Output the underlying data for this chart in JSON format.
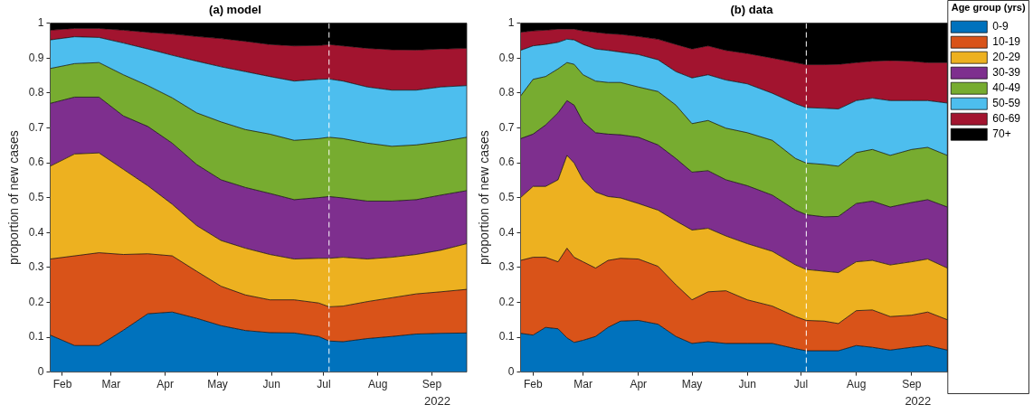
{
  "chart_data": [
    {
      "type": "area",
      "title": "(a) model",
      "ylabel": "proportion of new cases",
      "stacked": true,
      "legend": false,
      "x": [
        "2022-01-25",
        "2022-02-08",
        "2022-02-22",
        "2022-03-08",
        "2022-03-22",
        "2022-04-05",
        "2022-04-19",
        "2022-05-03",
        "2022-05-17",
        "2022-05-31",
        "2022-06-14",
        "2022-06-28",
        "2022-07-04",
        "2022-07-12",
        "2022-07-26",
        "2022-08-09",
        "2022-08-23",
        "2022-09-06",
        "2022-09-21"
      ],
      "series": [
        {
          "color": "#0072bd",
          "values": [
            0.106,
            0.076,
            0.076,
            0.12,
            0.167,
            0.172,
            0.154,
            0.133,
            0.119,
            0.113,
            0.112,
            0.102,
            0.089,
            0.087,
            0.096,
            0.102,
            0.109,
            0.111,
            0.112
          ]
        },
        {
          "color": "#d95319",
          "values": [
            0.218,
            0.257,
            0.266,
            0.217,
            0.172,
            0.161,
            0.135,
            0.113,
            0.102,
            0.094,
            0.095,
            0.096,
            0.098,
            0.102,
            0.106,
            0.111,
            0.115,
            0.119,
            0.125
          ]
        },
        {
          "color": "#edb120",
          "values": [
            0.266,
            0.292,
            0.286,
            0.244,
            0.195,
            0.148,
            0.131,
            0.131,
            0.134,
            0.13,
            0.117,
            0.128,
            0.139,
            0.14,
            0.122,
            0.116,
            0.113,
            0.119,
            0.131
          ]
        },
        {
          "color": "#7e2f8e",
          "values": [
            0.18,
            0.163,
            0.16,
            0.153,
            0.17,
            0.175,
            0.175,
            0.174,
            0.174,
            0.175,
            0.17,
            0.174,
            0.177,
            0.17,
            0.166,
            0.161,
            0.157,
            0.158,
            0.152
          ]
        },
        {
          "color": "#77ac30",
          "values": [
            0.1,
            0.096,
            0.099,
            0.118,
            0.117,
            0.13,
            0.148,
            0.166,
            0.166,
            0.17,
            0.17,
            0.169,
            0.17,
            0.17,
            0.166,
            0.157,
            0.157,
            0.153,
            0.153
          ]
        },
        {
          "color": "#4dbeee",
          "values": [
            0.082,
            0.077,
            0.072,
            0.091,
            0.105,
            0.122,
            0.148,
            0.158,
            0.166,
            0.165,
            0.17,
            0.17,
            0.167,
            0.165,
            0.161,
            0.161,
            0.157,
            0.157,
            0.148
          ]
        },
        {
          "color": "#a2142f",
          "values": [
            0.028,
            0.024,
            0.026,
            0.037,
            0.048,
            0.061,
            0.071,
            0.081,
            0.087,
            0.092,
            0.101,
            0.097,
            0.099,
            0.101,
            0.111,
            0.116,
            0.115,
            0.109,
            0.107
          ]
        },
        {
          "color": "#000000",
          "values": [
            0.02,
            0.015,
            0.015,
            0.02,
            0.026,
            0.031,
            0.038,
            0.044,
            0.052,
            0.061,
            0.065,
            0.064,
            0.061,
            0.065,
            0.072,
            0.076,
            0.077,
            0.074,
            0.072
          ]
        }
      ],
      "xlim": [
        "2022-01-25",
        "2022-09-21"
      ],
      "xticks": [
        {
          "value": "2022-02-01",
          "label": "Feb"
        },
        {
          "value": "2022-03-01",
          "label": "Mar"
        },
        {
          "value": "2022-04-01",
          "label": "Apr"
        },
        {
          "value": "2022-05-01",
          "label": "May"
        },
        {
          "value": "2022-06-01",
          "label": "Jun"
        },
        {
          "value": "2022-07-01",
          "label": "Jul"
        },
        {
          "value": "2022-08-01",
          "label": "Aug"
        },
        {
          "value": "2022-09-01",
          "label": "Sep"
        }
      ],
      "ylim": [
        0,
        1
      ],
      "yticks": [
        0,
        0.1,
        0.2,
        0.3,
        0.4,
        0.5,
        0.6,
        0.7,
        0.8,
        0.9,
        1
      ],
      "ref_lines": [
        {
          "axis": "x",
          "value": "2022-07-04",
          "color": "#ffffff",
          "line_style": "dashed"
        }
      ],
      "annotations": [
        "2022"
      ]
    },
    {
      "type": "area",
      "title": "(b) data",
      "ylabel": "proportion of new cases",
      "stacked": true,
      "legend": "top right",
      "legend_title": "Age group (yrs)",
      "x": [
        "2022-01-25",
        "2022-02-01",
        "2022-02-08",
        "2022-02-15",
        "2022-02-20",
        "2022-02-24",
        "2022-03-01",
        "2022-03-08",
        "2022-03-15",
        "2022-03-22",
        "2022-04-01",
        "2022-04-12",
        "2022-04-22",
        "2022-05-01",
        "2022-05-10",
        "2022-05-20",
        "2022-06-01",
        "2022-06-15",
        "2022-06-28",
        "2022-07-04",
        "2022-07-14",
        "2022-07-22",
        "2022-08-01",
        "2022-08-10",
        "2022-08-20",
        "2022-09-01",
        "2022-09-10",
        "2022-09-21"
      ],
      "series": [
        {
          "name": "0-9",
          "color": "#0072bd",
          "values": [
            0.111,
            0.106,
            0.128,
            0.124,
            0.098,
            0.085,
            0.091,
            0.102,
            0.128,
            0.146,
            0.148,
            0.137,
            0.102,
            0.082,
            0.087,
            0.082,
            0.082,
            0.082,
            0.067,
            0.061,
            0.061,
            0.061,
            0.076,
            0.071,
            0.063,
            0.071,
            0.076,
            0.063
          ]
        },
        {
          "name": "10-19",
          "color": "#d95319",
          "values": [
            0.209,
            0.223,
            0.201,
            0.192,
            0.257,
            0.244,
            0.225,
            0.196,
            0.192,
            0.18,
            0.176,
            0.166,
            0.148,
            0.125,
            0.143,
            0.151,
            0.125,
            0.107,
            0.092,
            0.087,
            0.085,
            0.078,
            0.1,
            0.107,
            0.096,
            0.092,
            0.096,
            0.087
          ]
        },
        {
          "name": "20-29",
          "color": "#edb120",
          "values": [
            0.18,
            0.203,
            0.203,
            0.235,
            0.266,
            0.27,
            0.235,
            0.218,
            0.183,
            0.173,
            0.159,
            0.161,
            0.183,
            0.2,
            0.182,
            0.157,
            0.161,
            0.157,
            0.148,
            0.146,
            0.143,
            0.146,
            0.14,
            0.142,
            0.148,
            0.153,
            0.152,
            0.148
          ]
        },
        {
          "name": "30-39",
          "color": "#7e2f8e",
          "values": [
            0.169,
            0.15,
            0.176,
            0.192,
            0.157,
            0.166,
            0.166,
            0.17,
            0.179,
            0.181,
            0.19,
            0.187,
            0.179,
            0.166,
            0.165,
            0.161,
            0.166,
            0.161,
            0.157,
            0.157,
            0.156,
            0.161,
            0.167,
            0.17,
            0.166,
            0.17,
            0.17,
            0.175
          ]
        },
        {
          "name": "40-49",
          "color": "#77ac30",
          "values": [
            0.122,
            0.157,
            0.139,
            0.126,
            0.109,
            0.117,
            0.135,
            0.148,
            0.148,
            0.15,
            0.144,
            0.153,
            0.153,
            0.139,
            0.144,
            0.148,
            0.152,
            0.157,
            0.148,
            0.148,
            0.15,
            0.144,
            0.146,
            0.148,
            0.148,
            0.152,
            0.15,
            0.148
          ]
        },
        {
          "name": "50-59",
          "color": "#4dbeee",
          "values": [
            0.131,
            0.096,
            0.092,
            0.076,
            0.067,
            0.07,
            0.087,
            0.092,
            0.092,
            0.087,
            0.093,
            0.091,
            0.096,
            0.131,
            0.131,
            0.138,
            0.14,
            0.135,
            0.157,
            0.159,
            0.161,
            0.164,
            0.149,
            0.147,
            0.157,
            0.14,
            0.134,
            0.15
          ]
        },
        {
          "name": "60-69",
          "color": "#a2142f",
          "values": [
            0.052,
            0.043,
            0.041,
            0.038,
            0.029,
            0.031,
            0.039,
            0.048,
            0.048,
            0.051,
            0.052,
            0.059,
            0.078,
            0.083,
            0.083,
            0.085,
            0.087,
            0.101,
            0.118,
            0.123,
            0.125,
            0.128,
            0.109,
            0.106,
            0.115,
            0.113,
            0.109,
            0.116
          ]
        },
        {
          "name": "70+",
          "color": "#000000",
          "values": [
            0.026,
            0.022,
            0.02,
            0.017,
            0.017,
            0.017,
            0.022,
            0.026,
            0.03,
            0.032,
            0.038,
            0.046,
            0.061,
            0.074,
            0.065,
            0.078,
            0.087,
            0.1,
            0.113,
            0.119,
            0.119,
            0.118,
            0.113,
            0.109,
            0.107,
            0.109,
            0.113,
            0.113
          ]
        }
      ],
      "xlim": [
        "2022-01-25",
        "2022-09-21"
      ],
      "xticks": [
        {
          "value": "2022-02-01",
          "label": "Feb"
        },
        {
          "value": "2022-03-01",
          "label": "Mar"
        },
        {
          "value": "2022-04-01",
          "label": "Apr"
        },
        {
          "value": "2022-05-01",
          "label": "May"
        },
        {
          "value": "2022-06-01",
          "label": "Jun"
        },
        {
          "value": "2022-07-01",
          "label": "Jul"
        },
        {
          "value": "2022-08-01",
          "label": "Aug"
        },
        {
          "value": "2022-09-01",
          "label": "Sep"
        }
      ],
      "ylim": [
        0,
        1
      ],
      "yticks": [
        0,
        0.1,
        0.2,
        0.3,
        0.4,
        0.5,
        0.6,
        0.7,
        0.8,
        0.9,
        1
      ],
      "ref_lines": [
        {
          "axis": "x",
          "value": "2022-07-04",
          "color": "#ffffff",
          "line_style": "dashed"
        }
      ],
      "annotations": [
        "2022"
      ]
    }
  ]
}
